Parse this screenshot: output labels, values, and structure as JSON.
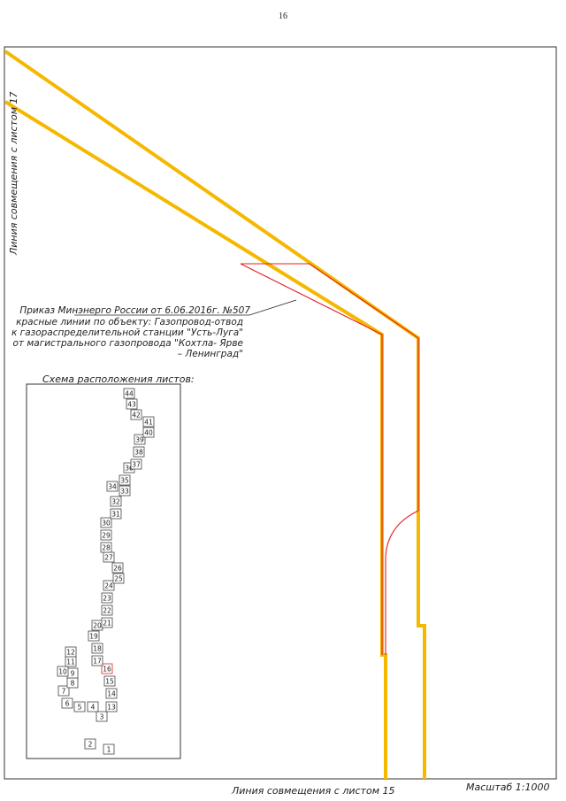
{
  "page_number": "16",
  "match_line_left": "Линия совмещения с листом 17",
  "match_line_bottom": "Линия совмещения с листом 15",
  "scale": "Масштаб 1:1000",
  "order_note": {
    "line1": "Приказ Минэнерго России от 6.06.2016г. №507",
    "line2": "красные линии по объекту: Газопровод-отвод",
    "line3": "к газораспределительной станции \"Усть-Луга\"",
    "line4": "от магистрального газопровода \"Кохтла- Ярве",
    "line5": "– Ленинград\""
  },
  "layout_scheme": {
    "title": "Схема расположения листов:",
    "current_sheet": "16",
    "sheets": [
      "1",
      "2",
      "3",
      "4",
      "5",
      "6",
      "7",
      "8",
      "9",
      "10",
      "11",
      "12",
      "13",
      "14",
      "15",
      "16",
      "17",
      "18",
      "19",
      "20",
      "21",
      "22",
      "23",
      "24",
      "25",
      "26",
      "27",
      "28",
      "29",
      "30",
      "31",
      "32",
      "33",
      "34",
      "35",
      "36",
      "37",
      "38",
      "39",
      "40",
      "41",
      "42",
      "43",
      "44"
    ]
  },
  "colors": {
    "corridor": "#f5b800",
    "red_line": "#e02020",
    "frame": "#333333"
  }
}
